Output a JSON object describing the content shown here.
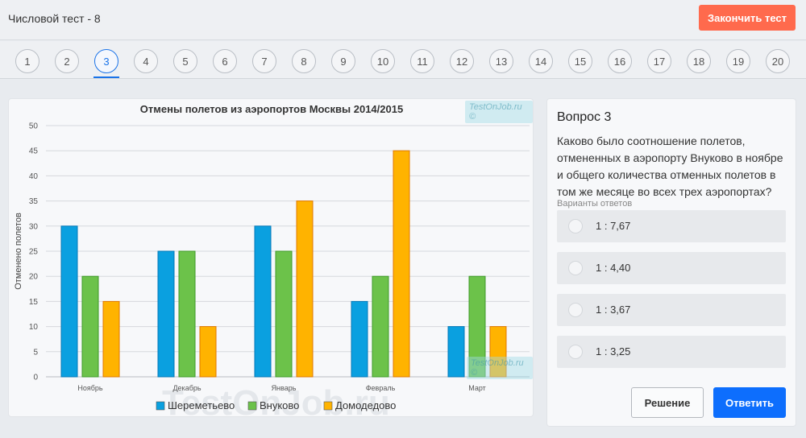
{
  "header": {
    "title": "Числовой тест - 8",
    "finish_label": "Закончить тест"
  },
  "question_nav": {
    "items": [
      "1",
      "2",
      "3",
      "4",
      "5",
      "6",
      "7",
      "8",
      "9",
      "10",
      "11",
      "12",
      "13",
      "14",
      "15",
      "16",
      "17",
      "18",
      "19",
      "20"
    ],
    "active": "3"
  },
  "watermarks": {
    "badge": "TestOnJob.ru ©",
    "large": "TestOnJob.ru"
  },
  "chart_data": {
    "type": "bar",
    "title": "Отмены полетов из аэропортов Москвы 2014/2015",
    "xlabel": "",
    "ylabel": "Отменено полетов",
    "ylim": [
      0,
      50
    ],
    "yticks": [
      0,
      5,
      10,
      15,
      20,
      25,
      30,
      35,
      40,
      45,
      50
    ],
    "grid": true,
    "legend_position": "bottom",
    "categories": [
      "Ноябрь",
      "Декабрь",
      "Январь",
      "Февраль",
      "Март"
    ],
    "series": [
      {
        "name": "Шереметьево",
        "color": "#0aa0e0",
        "values": [
          30,
          25,
          30,
          15,
          10
        ]
      },
      {
        "name": "Внуково",
        "color": "#6cc24a",
        "values": [
          20,
          25,
          25,
          20,
          20
        ]
      },
      {
        "name": "Домодедово",
        "color": "#ffb300",
        "values": [
          15,
          10,
          35,
          45,
          10
        ]
      }
    ]
  },
  "question": {
    "title": "Вопрос 3",
    "text": "Каково было соотношение полетов, отмененных в аэропорту Внуково в ноябре и общего количества отменных полетов в том же месяце во всех трех аэропортах?",
    "variants_label": "Варианты ответов",
    "answers": [
      "1 : 7,67",
      "1 : 4,40",
      "1 : 3,67",
      "1 : 3,25"
    ],
    "solution_label": "Решение",
    "answer_label": "Ответить"
  }
}
